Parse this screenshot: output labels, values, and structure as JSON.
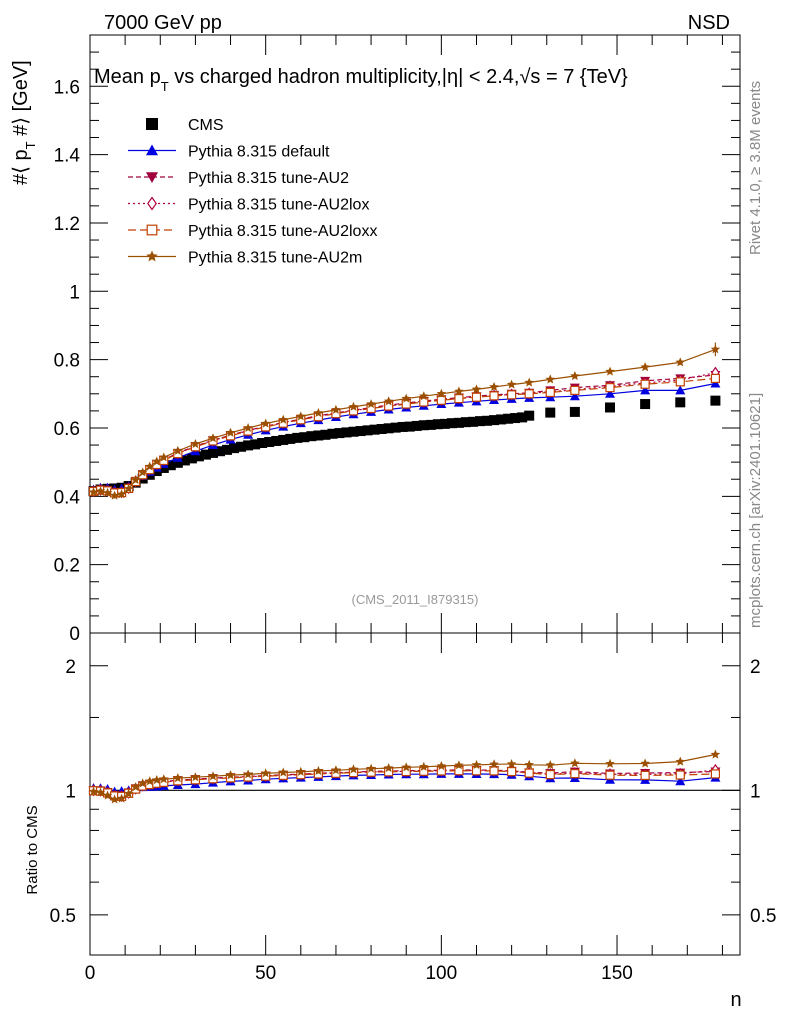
{
  "header": {
    "energy_label": "7000 GeV pp",
    "process_label": "NSD",
    "rivet_label": "Rivet 4.1.0, ≥ 3.8M events",
    "mcplots_label": "mcplots.cern.ch [arXiv:2401.10621]",
    "analysis_id": "(CMS_2011_I879315)"
  },
  "chart_data": [
    {
      "type": "scatter",
      "title_parts": {
        "a": "Mean p",
        "sub": "T",
        "b": " vs charged hadron multiplicity,",
        "eta": "|η| < 2.4,",
        "sqrt": "√s = 7 {TeV}"
      },
      "xlabel": "n",
      "ylabel_parts": {
        "a": "#⟨ p",
        "sub": "T",
        "b": " #⟩ [GeV]"
      },
      "xlim": [
        0,
        185
      ],
      "ylim": [
        0,
        1.75
      ],
      "xticks": [
        "0",
        "50",
        "100",
        "150"
      ],
      "yticks": [
        "0",
        "0.2",
        "0.4",
        "0.6",
        "0.8",
        "1",
        "1.2",
        "1.4",
        "1.6"
      ],
      "legend": [
        {
          "label": "CMS",
          "color": "#000000",
          "marker": "square"
        },
        {
          "label": "Pythia 8.315 default",
          "color": "#0000e0",
          "marker": "triangle-up"
        },
        {
          "label": "Pythia 8.315 tune-AU2",
          "color": "#a0003c",
          "marker": "triangle-down"
        },
        {
          "label": "Pythia 8.315 tune-AU2lox",
          "color": "#b00040",
          "marker": "diamond-open"
        },
        {
          "label": "Pythia 8.315 tune-AU2loxx",
          "color": "#c04000",
          "marker": "square-open"
        },
        {
          "label": "Pythia 8.315 tune-AU2m",
          "color": "#9a5000",
          "marker": "star"
        }
      ],
      "series": [
        {
          "name": "CMS",
          "color": "#000000",
          "x": [
            1,
            3,
            5,
            7,
            9,
            11,
            13,
            15,
            17,
            19,
            21,
            23,
            25,
            27,
            29,
            31,
            33,
            35,
            37,
            39,
            41,
            43,
            45,
            47,
            49,
            51,
            53,
            55,
            57,
            59,
            61,
            63,
            65,
            67,
            69,
            71,
            73,
            75,
            77,
            79,
            81,
            83,
            85,
            87,
            89,
            91,
            93,
            95,
            97,
            99,
            101,
            103,
            105,
            107,
            109,
            111,
            113,
            115,
            117,
            119,
            121,
            123,
            125,
            131,
            138,
            148,
            158,
            168,
            178
          ],
          "y": [
            0.415,
            0.42,
            0.422,
            0.423,
            0.425,
            0.43,
            0.44,
            0.452,
            0.463,
            0.474,
            0.483,
            0.491,
            0.498,
            0.505,
            0.511,
            0.517,
            0.522,
            0.527,
            0.532,
            0.536,
            0.541,
            0.545,
            0.549,
            0.552,
            0.556,
            0.559,
            0.562,
            0.565,
            0.568,
            0.571,
            0.573,
            0.576,
            0.578,
            0.58,
            0.583,
            0.585,
            0.587,
            0.589,
            0.591,
            0.593,
            0.595,
            0.597,
            0.599,
            0.601,
            0.603,
            0.604,
            0.606,
            0.608,
            0.609,
            0.611,
            0.612,
            0.614,
            0.615,
            0.617,
            0.618,
            0.62,
            0.621,
            0.623,
            0.625,
            0.627,
            0.629,
            0.631,
            0.636,
            0.645,
            0.647,
            0.66,
            0.67,
            0.675,
            0.68
          ]
        },
        {
          "name": "Pythia 8.315 default",
          "color": "#0000e0",
          "x": [
            1,
            3,
            5,
            7,
            9,
            11,
            13,
            15,
            17,
            19,
            21,
            25,
            30,
            35,
            40,
            45,
            50,
            55,
            60,
            65,
            70,
            75,
            80,
            85,
            90,
            95,
            100,
            105,
            110,
            115,
            120,
            125,
            131,
            138,
            148,
            158,
            168,
            178
          ],
          "y": [
            0.42,
            0.425,
            0.425,
            0.42,
            0.423,
            0.43,
            0.445,
            0.46,
            0.472,
            0.484,
            0.495,
            0.513,
            0.532,
            0.55,
            0.566,
            0.58,
            0.593,
            0.604,
            0.614,
            0.623,
            0.632,
            0.64,
            0.647,
            0.654,
            0.66,
            0.665,
            0.67,
            0.674,
            0.678,
            0.682,
            0.685,
            0.688,
            0.69,
            0.693,
            0.7,
            0.71,
            0.71,
            0.73
          ]
        },
        {
          "name": "Pythia 8.315 tune-AU2",
          "color": "#a0003c",
          "x": [
            1,
            3,
            5,
            7,
            9,
            11,
            13,
            15,
            17,
            19,
            21,
            25,
            30,
            35,
            40,
            45,
            50,
            55,
            60,
            65,
            70,
            75,
            80,
            85,
            90,
            95,
            100,
            105,
            110,
            115,
            120,
            125,
            131,
            138,
            148,
            158,
            168,
            178
          ],
          "y": [
            0.415,
            0.42,
            0.418,
            0.412,
            0.413,
            0.425,
            0.445,
            0.465,
            0.48,
            0.495,
            0.507,
            0.527,
            0.547,
            0.564,
            0.579,
            0.593,
            0.605,
            0.616,
            0.626,
            0.636,
            0.644,
            0.652,
            0.66,
            0.667,
            0.673,
            0.679,
            0.684,
            0.689,
            0.693,
            0.697,
            0.7,
            0.703,
            0.71,
            0.718,
            0.725,
            0.738,
            0.745,
            0.755
          ]
        },
        {
          "name": "Pythia 8.315 tune-AU2lox",
          "color": "#b00040",
          "x": [
            1,
            3,
            5,
            7,
            9,
            11,
            13,
            15,
            17,
            19,
            21,
            25,
            30,
            35,
            40,
            45,
            50,
            55,
            60,
            65,
            70,
            75,
            80,
            85,
            90,
            95,
            100,
            105,
            110,
            115,
            120,
            125,
            131,
            138,
            148,
            158,
            168,
            178
          ],
          "y": [
            0.415,
            0.419,
            0.417,
            0.411,
            0.412,
            0.424,
            0.444,
            0.464,
            0.479,
            0.494,
            0.506,
            0.526,
            0.546,
            0.563,
            0.578,
            0.592,
            0.604,
            0.615,
            0.625,
            0.634,
            0.643,
            0.651,
            0.658,
            0.665,
            0.671,
            0.677,
            0.682,
            0.687,
            0.691,
            0.695,
            0.698,
            0.701,
            0.706,
            0.712,
            0.722,
            0.732,
            0.74,
            0.762
          ]
        },
        {
          "name": "Pythia 8.315 tune-AU2loxx",
          "color": "#c04000",
          "x": [
            1,
            3,
            5,
            7,
            9,
            11,
            13,
            15,
            17,
            19,
            21,
            25,
            30,
            35,
            40,
            45,
            50,
            55,
            60,
            65,
            70,
            75,
            80,
            85,
            90,
            95,
            100,
            105,
            110,
            115,
            120,
            125,
            131,
            138,
            148,
            158,
            168,
            178
          ],
          "y": [
            0.414,
            0.418,
            0.416,
            0.41,
            0.411,
            0.423,
            0.443,
            0.463,
            0.478,
            0.493,
            0.505,
            0.525,
            0.545,
            0.562,
            0.577,
            0.591,
            0.603,
            0.614,
            0.624,
            0.633,
            0.642,
            0.65,
            0.657,
            0.664,
            0.67,
            0.676,
            0.681,
            0.686,
            0.69,
            0.694,
            0.697,
            0.7,
            0.704,
            0.71,
            0.718,
            0.728,
            0.735,
            0.745
          ]
        },
        {
          "name": "Pythia 8.315 tune-AU2m",
          "color": "#9a5000",
          "x": [
            1,
            3,
            5,
            7,
            9,
            11,
            13,
            15,
            17,
            19,
            21,
            25,
            30,
            35,
            40,
            45,
            50,
            55,
            60,
            65,
            70,
            75,
            80,
            85,
            90,
            95,
            100,
            105,
            110,
            115,
            120,
            125,
            131,
            138,
            148,
            158,
            168,
            178
          ],
          "y": [
            0.412,
            0.415,
            0.41,
            0.402,
            0.406,
            0.422,
            0.448,
            0.47,
            0.487,
            0.502,
            0.514,
            0.533,
            0.553,
            0.57,
            0.586,
            0.6,
            0.613,
            0.624,
            0.634,
            0.644,
            0.653,
            0.662,
            0.67,
            0.678,
            0.686,
            0.693,
            0.7,
            0.707,
            0.713,
            0.72,
            0.727,
            0.733,
            0.742,
            0.752,
            0.765,
            0.778,
            0.792,
            0.83
          ]
        }
      ]
    },
    {
      "type": "line",
      "ylabel": "Ratio to CMS",
      "ylog": true,
      "ylim": [
        0.4,
        2.4
      ],
      "yticks": [
        "0.5",
        "1",
        "2"
      ],
      "reference_y": 1
    }
  ]
}
